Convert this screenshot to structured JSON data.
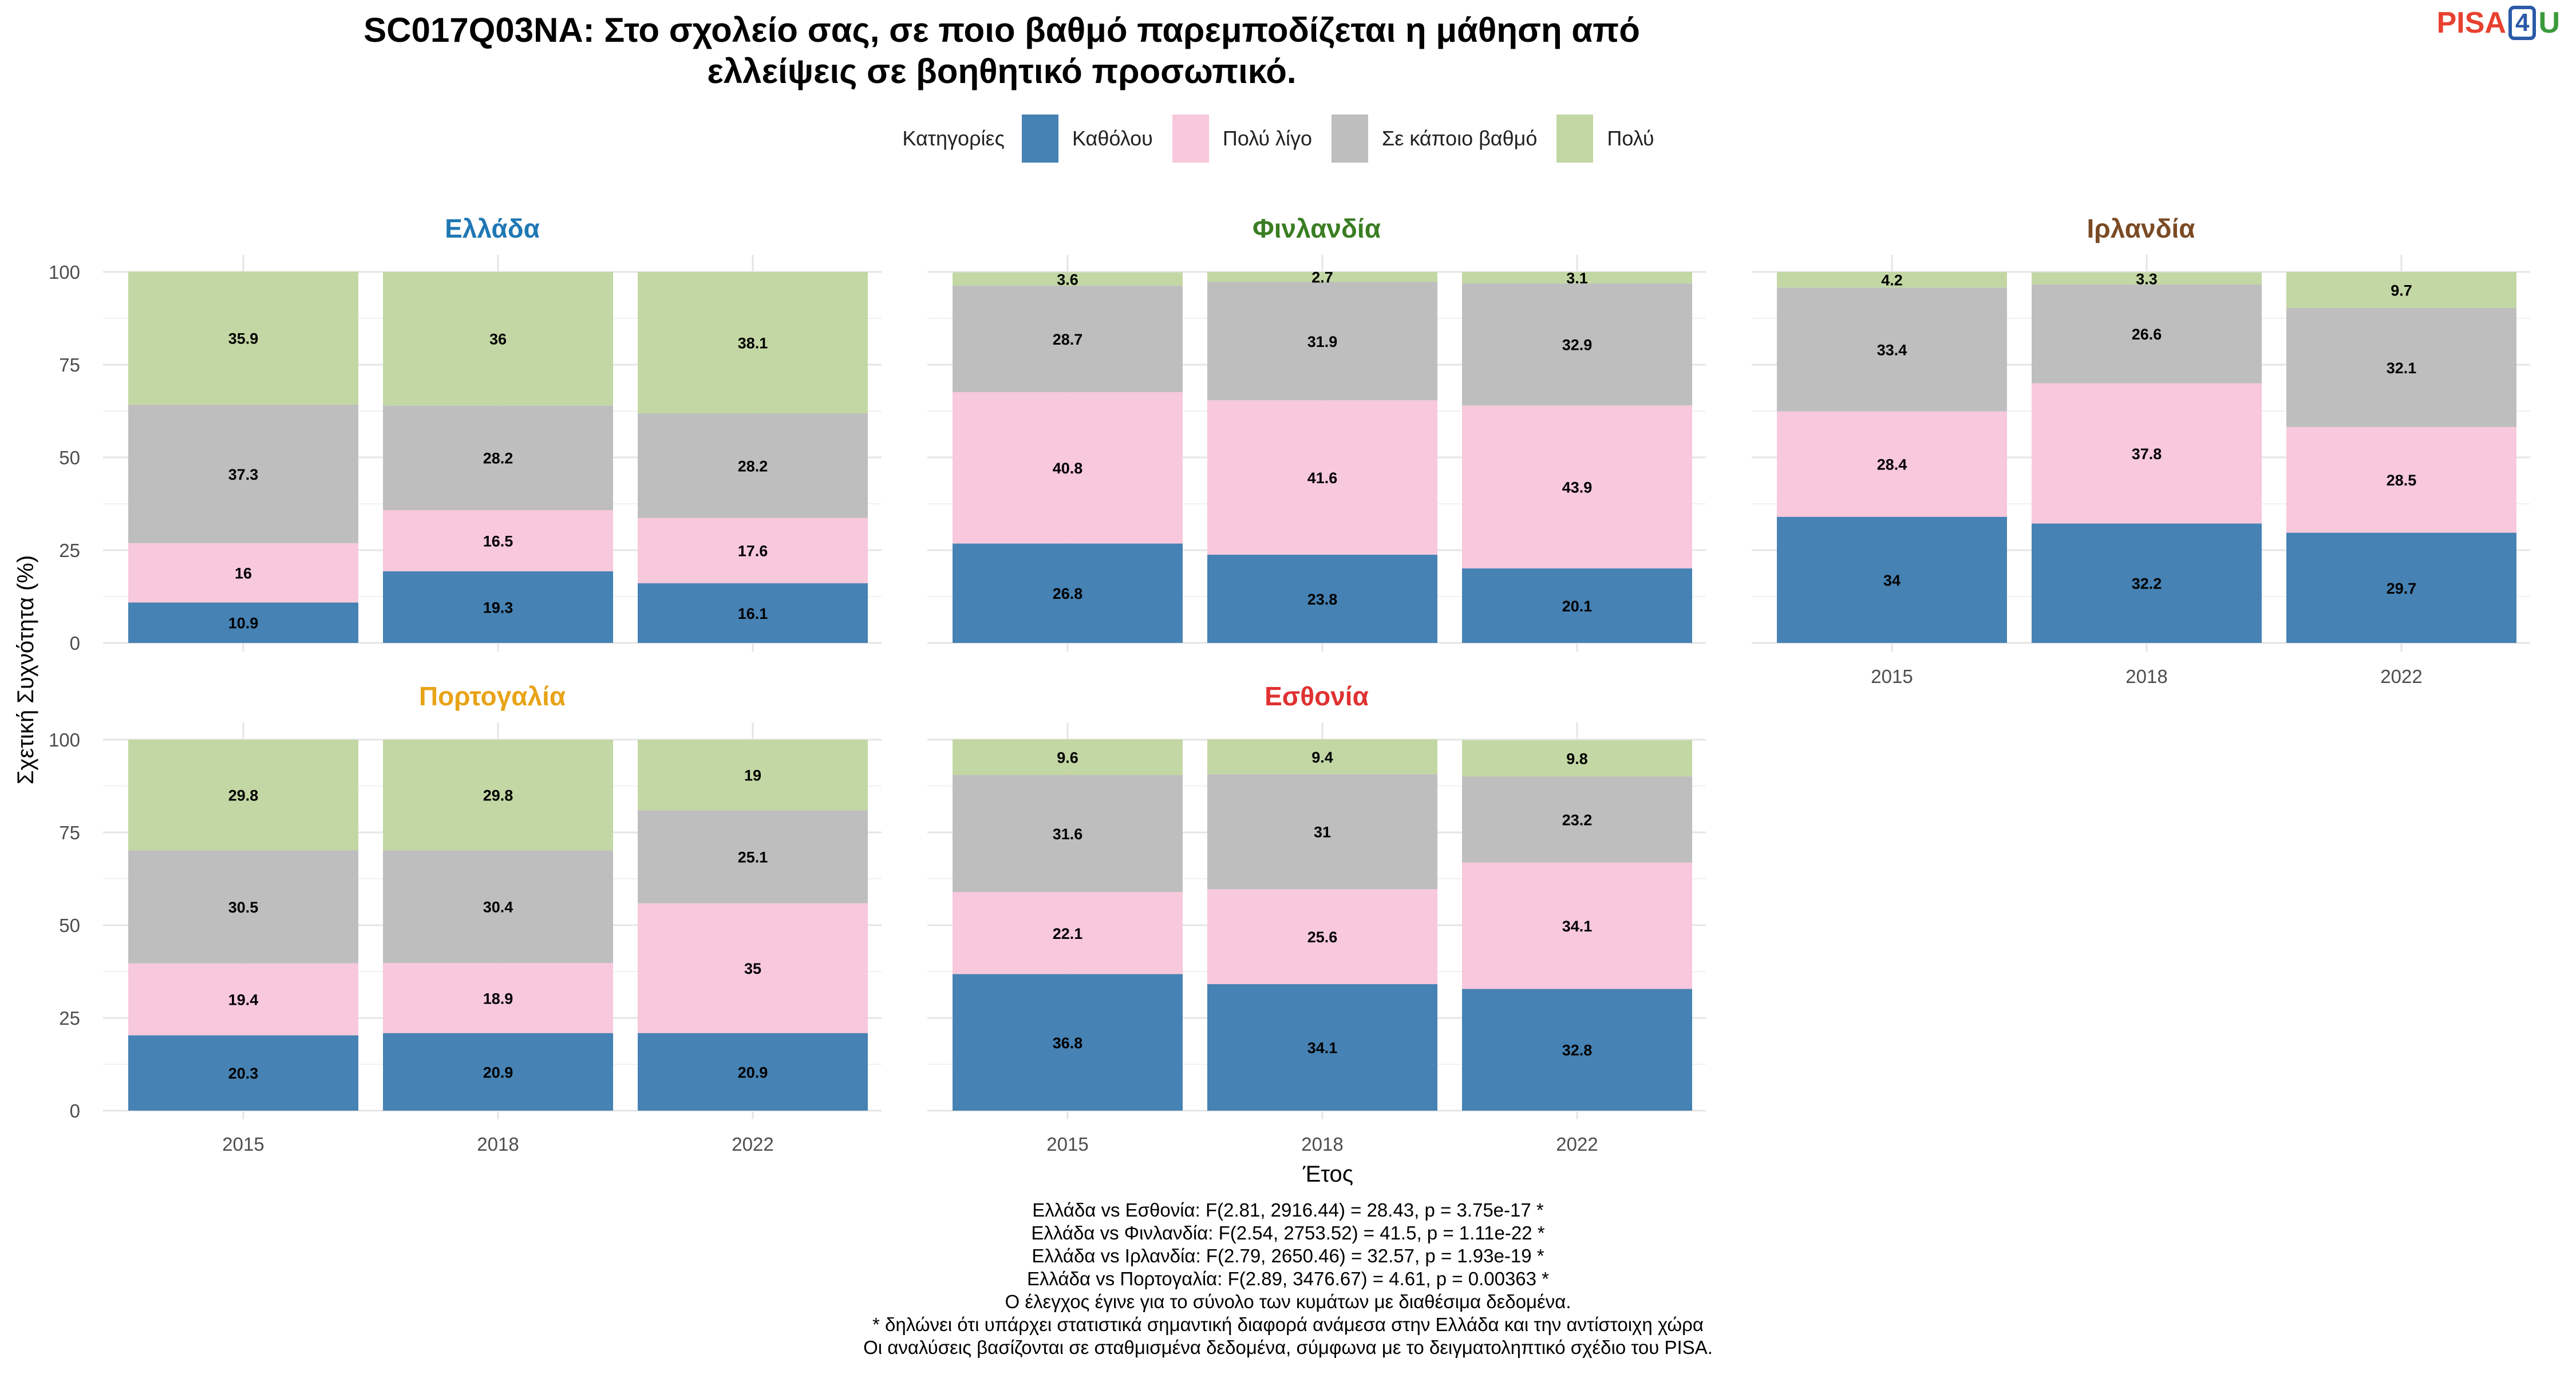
{
  "title_line1": "SC017Q03NA: Στο σχολείο σας, σε ποιο βαθμό παρεμποδίζεται η μάθηση από",
  "title_line2": "ελλείψεις σε βοηθητικό προσωπικό.",
  "logo": {
    "part1": "PISA",
    "part2": "4",
    "part3": "U"
  },
  "legend": {
    "title": "Κατηγορίες",
    "items": [
      {
        "label": "Καθόλου",
        "color": "#4682b4"
      },
      {
        "label": "Πολύ λίγο",
        "color": "#f8c8dc"
      },
      {
        "label": "Σε κάποιο βαθμό",
        "color": "#bebebe"
      },
      {
        "label": "Πολύ",
        "color": "#c3d7a4"
      }
    ]
  },
  "footer_lines": [
    "Ελλάδα vs Εσθονία: F(2.81, 2916.44) = 28.43, p = 3.75e-17 *",
    "Ελλάδα vs Φινλανδία: F(2.54, 2753.52) = 41.5, p = 1.11e-22 *",
    "Ελλάδα vs Ιρλανδία: F(2.79, 2650.46) = 32.57, p = 1.93e-19 *",
    "Ελλάδα vs Πορτογαλία: F(2.89, 3476.67) = 4.61, p = 0.00363 *",
    "Ο έλεγχος έγινε για το σύνολο των κυμάτων με διαθέσιμα δεδομένα.",
    "* δηλώνει ότι υπάρχει στατιστικά σημαντική διαφορά ανάμεσα στην Ελλάδα και την αντίστοιχη χώρα",
    "Οι αναλύσεις βασίζονται σε σταθμισμένα δεδομένα, σύμφωνα με το δειγματοληπτικό σχέδιο του PISA."
  ],
  "chart_data": {
    "type": "bar",
    "stacked": true,
    "xlabel": "Έτος",
    "ylabel": "Σχετική Συχνότητα (%)",
    "ylim": [
      0,
      100
    ],
    "yticks": [
      0,
      25,
      50,
      75,
      100
    ],
    "categories": [
      "2015",
      "2018",
      "2022"
    ],
    "series_names": [
      "Καθόλου",
      "Πολύ λίγο",
      "Σε κάποιο βαθμό",
      "Πολύ"
    ],
    "colors": [
      "#4682b4",
      "#f8c8dc",
      "#bebebe",
      "#c3d7a4"
    ],
    "panels": [
      {
        "country": "Ελλάδα",
        "color": "#1f78b4",
        "values": [
          [
            10.9,
            16,
            37.3,
            35.9
          ],
          [
            19.3,
            16.5,
            28.2,
            36
          ],
          [
            16.1,
            17.6,
            28.2,
            38.1
          ]
        ]
      },
      {
        "country": "Φινλανδία",
        "color": "#3a7d22",
        "values": [
          [
            26.8,
            40.8,
            28.7,
            3.6
          ],
          [
            23.8,
            41.6,
            31.9,
            2.7
          ],
          [
            20.1,
            43.9,
            32.9,
            3.1
          ]
        ]
      },
      {
        "country": "Ιρλανδία",
        "color": "#7b4a23",
        "values": [
          [
            34,
            28.4,
            33.4,
            4.2
          ],
          [
            32.2,
            37.8,
            26.6,
            3.3
          ],
          [
            29.7,
            28.5,
            32.1,
            9.7
          ]
        ]
      },
      {
        "country": "Πορτογαλία",
        "color": "#e8a317",
        "values": [
          [
            20.3,
            19.4,
            30.5,
            29.8
          ],
          [
            20.9,
            18.9,
            30.4,
            29.8
          ],
          [
            20.9,
            35,
            25.1,
            19
          ]
        ]
      },
      {
        "country": "Εσθονία",
        "color": "#e03131",
        "values": [
          [
            36.8,
            22.1,
            31.6,
            9.6
          ],
          [
            34.1,
            25.6,
            31,
            9.4
          ],
          [
            32.8,
            34.1,
            23.2,
            9.8
          ]
        ]
      }
    ]
  }
}
